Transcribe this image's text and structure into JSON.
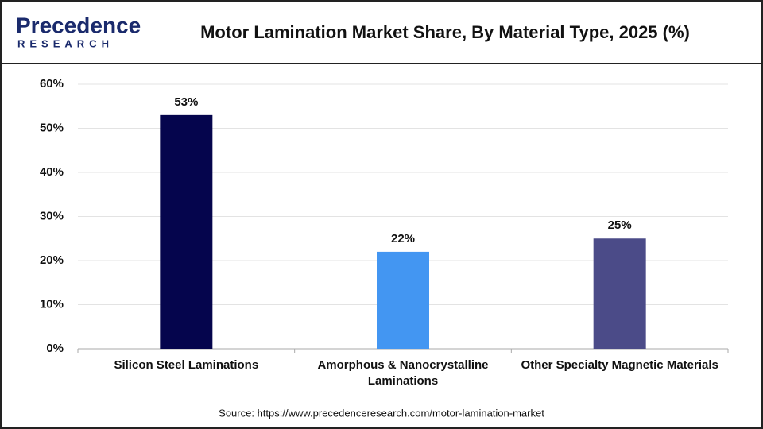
{
  "logo": {
    "name": "Precedence",
    "sub": "RESEARCH"
  },
  "chart_data": {
    "type": "bar",
    "title": "Motor Lamination Market Share, By Material Type, 2025 (%)",
    "categories": [
      "Silicon Steel Laminations",
      "Amorphous & Nanocrystalline Laminations",
      "Other Specialty Magnetic Materials"
    ],
    "values": [
      53,
      22,
      25
    ],
    "value_labels": [
      "53%",
      "22%",
      "25%"
    ],
    "colors": [
      "#05054d",
      "#4396f2",
      "#4b4b88"
    ],
    "ylim": [
      0,
      60
    ],
    "yticks": [
      {
        "value": 0,
        "label": "0%"
      },
      {
        "value": 10,
        "label": "10%"
      },
      {
        "value": 20,
        "label": "20%"
      },
      {
        "value": 30,
        "label": "30%"
      },
      {
        "value": 40,
        "label": "40%"
      },
      {
        "value": 50,
        "label": "50%"
      },
      {
        "value": 60,
        "label": "60%"
      }
    ],
    "grid": true,
    "source": "Source: https://www.precedenceresearch.com/motor-lamination-market"
  }
}
